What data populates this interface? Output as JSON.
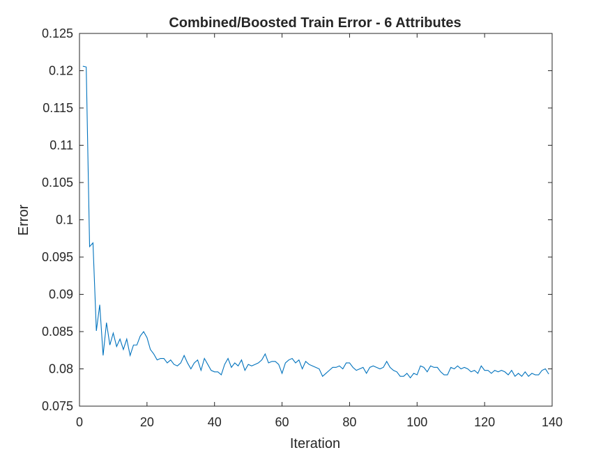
{
  "chart_data": {
    "type": "line",
    "title": "Combined/Boosted Train Error - 6 Attributes",
    "xlabel": "Iteration",
    "ylabel": "Error",
    "xlim": [
      0,
      140
    ],
    "ylim": [
      0.075,
      0.125
    ],
    "xticks": [
      "0",
      "20",
      "40",
      "60",
      "80",
      "100",
      "120",
      "140"
    ],
    "yticks": [
      "0.075",
      "0.08",
      "0.085",
      "0.09",
      "0.095",
      "0.1",
      "0.105",
      "0.11",
      "0.115",
      "0.12",
      "0.125"
    ],
    "grid": false,
    "line_color": "#0072bd",
    "series": [
      {
        "values": [
          0.1206,
          0.1205,
          0.0964,
          0.0969,
          0.0851,
          0.0886,
          0.0818,
          0.0862,
          0.0832,
          0.0848,
          0.083,
          0.084,
          0.0826,
          0.084,
          0.0818,
          0.0832,
          0.0832,
          0.0844,
          0.085,
          0.0842,
          0.0826,
          0.082,
          0.0812,
          0.0814,
          0.0814,
          0.0808,
          0.0812,
          0.0806,
          0.0804,
          0.0808,
          0.0818,
          0.0808,
          0.08,
          0.0808,
          0.0812,
          0.0798,
          0.0814,
          0.0806,
          0.0798,
          0.0796,
          0.0796,
          0.0792,
          0.0806,
          0.0814,
          0.0802,
          0.0808,
          0.0804,
          0.0812,
          0.0798,
          0.0806,
          0.0804,
          0.0806,
          0.0808,
          0.0812,
          0.082,
          0.0808,
          0.081,
          0.081,
          0.0806,
          0.0794,
          0.0808,
          0.0812,
          0.0814,
          0.0808,
          0.0812,
          0.08,
          0.081,
          0.0806,
          0.0804,
          0.0802,
          0.08,
          0.079,
          0.0794,
          0.0798,
          0.0802,
          0.0802,
          0.0804,
          0.08,
          0.0808,
          0.0808,
          0.0802,
          0.0798,
          0.08,
          0.0802,
          0.0794,
          0.0802,
          0.0804,
          0.0802,
          0.08,
          0.0802,
          0.081,
          0.0802,
          0.0798,
          0.0796,
          0.079,
          0.079,
          0.0794,
          0.0788,
          0.0794,
          0.0792,
          0.0804,
          0.0802,
          0.0796,
          0.0804,
          0.0802,
          0.0802,
          0.0796,
          0.0792,
          0.0792,
          0.0802,
          0.08,
          0.0804,
          0.08,
          0.0802,
          0.08,
          0.0796,
          0.0798,
          0.0794,
          0.0804,
          0.0798,
          0.0798,
          0.0794,
          0.0798,
          0.0796,
          0.0798,
          0.0796,
          0.0792,
          0.0798,
          0.079,
          0.0794,
          0.079,
          0.0796,
          0.079,
          0.0794,
          0.0792,
          0.0792,
          0.0798,
          0.08,
          0.0793
        ]
      }
    ]
  }
}
